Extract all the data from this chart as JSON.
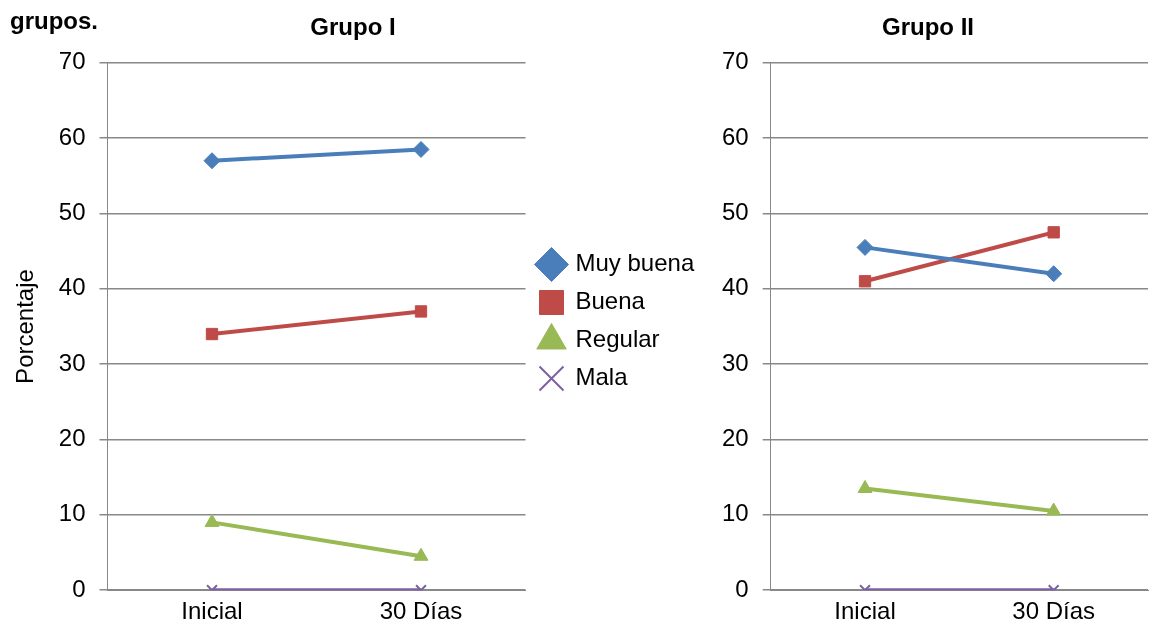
{
  "chart_data": [
    {
      "type": "line",
      "title": "Grupo I",
      "ylabel": "Porcentaje",
      "categories": [
        "Inicial",
        "30 Días"
      ],
      "ylim": [
        0,
        70
      ],
      "yticks": [
        0,
        10,
        20,
        30,
        40,
        50,
        60,
        70
      ],
      "grid": "y",
      "legend": "right",
      "annotations": [
        "grupos."
      ],
      "series": [
        {
          "name": "Muy buena",
          "color": "#4a7ebb",
          "marker": "diamond",
          "values": [
            57,
            58.5
          ]
        },
        {
          "name": "Buena",
          "color": "#be4b48",
          "marker": "square",
          "values": [
            34,
            37
          ]
        },
        {
          "name": "Regular",
          "color": "#98b954",
          "marker": "triangle",
          "values": [
            9,
            4.5
          ]
        },
        {
          "name": "Mala",
          "color": "#7d60a0",
          "marker": "cross",
          "values": [
            0,
            0
          ]
        }
      ]
    },
    {
      "type": "line",
      "title": "Grupo II",
      "categories": [
        "Inicial",
        "30 Días"
      ],
      "ylim": [
        0,
        70
      ],
      "yticks": [
        0,
        10,
        20,
        30,
        40,
        50,
        60,
        70
      ],
      "grid": "y",
      "legend": false,
      "series": [
        {
          "color": "#4a7ebb",
          "marker": "diamond",
          "values": [
            45.5,
            42
          ]
        },
        {
          "color": "#be4b48",
          "marker": "square",
          "values": [
            41,
            47.5
          ]
        },
        {
          "color": "#98b954",
          "marker": "triangle",
          "values": [
            13.5,
            10.5
          ]
        },
        {
          "color": "#7d60a0",
          "marker": "cross",
          "values": [
            0,
            0
          ]
        }
      ]
    }
  ]
}
